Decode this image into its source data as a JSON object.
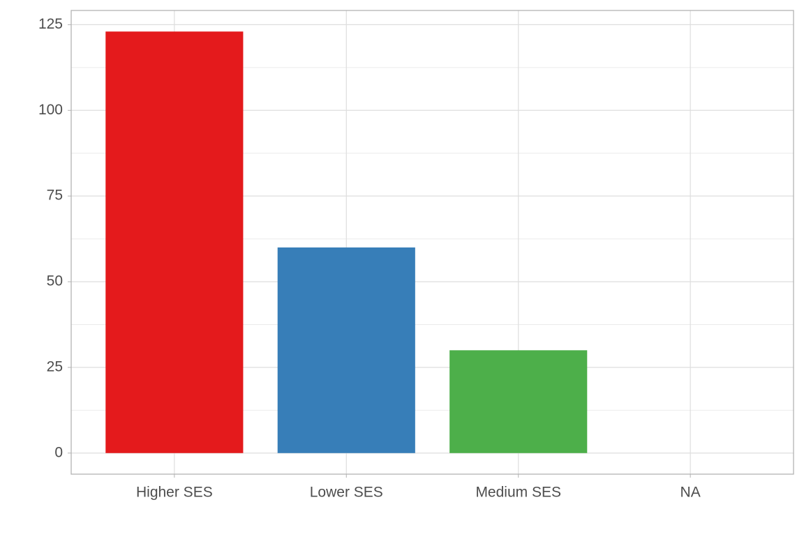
{
  "chart_data": {
    "type": "bar",
    "categories": [
      "Higher SES",
      "Lower SES",
      "Medium SES",
      "NA"
    ],
    "values": [
      123,
      60,
      30,
      0
    ],
    "colors": [
      "#e41a1c",
      "#377eb8",
      "#4daf4a",
      "#7f7f7f"
    ],
    "ylim": [
      -6.15,
      129.15
    ],
    "yticks": [
      0,
      25,
      50,
      75,
      100,
      125
    ],
    "grid": true
  }
}
